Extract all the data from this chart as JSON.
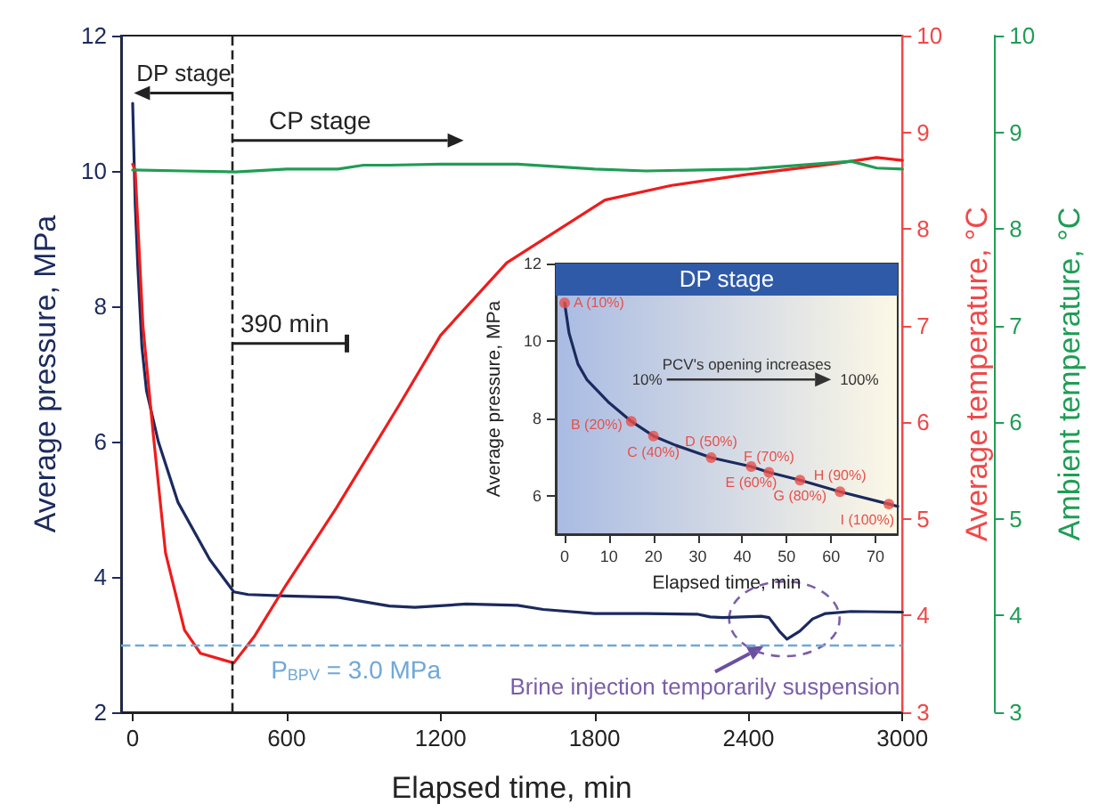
{
  "chart_data": [
    {
      "type": "line",
      "xlabel": "Elapsed time, min",
      "ylabel": "Average pressure, MPa",
      "y2label": "Average temperature, °C",
      "y3label": "Ambient temperature, °C",
      "xlim": [
        -45,
        3000
      ],
      "xticks": [
        0,
        600,
        1200,
        1800,
        2400,
        3000
      ],
      "ylim": [
        2,
        12
      ],
      "yticks": [
        2,
        4,
        6,
        8,
        10,
        12
      ],
      "y2lim": [
        3,
        10
      ],
      "y2ticks": [
        3,
        4,
        5,
        6,
        7,
        8,
        9,
        10
      ],
      "y3lim": [
        3,
        10
      ],
      "y3ticks": [
        3,
        4,
        5,
        6,
        7,
        8,
        9,
        10
      ],
      "grid": false,
      "marker": "none",
      "line_style": "solid",
      "series": [
        {
          "color": "#1b2a5e",
          "axis": "y",
          "x": [
            0,
            10,
            20,
            36,
            54,
            100,
            177,
            300,
            394,
            450,
            600,
            800,
            1000,
            1100,
            1300,
            1500,
            1600,
            1800,
            2000,
            2200,
            2250,
            2300,
            2450,
            2480,
            2520,
            2550,
            2600,
            2650,
            2700,
            2800,
            3000
          ],
          "values": [
            11.0,
            9.5,
            8.6,
            7.4,
            6.75,
            6.0,
            5.1,
            4.26,
            3.78,
            3.74,
            3.72,
            3.7,
            3.57,
            3.55,
            3.6,
            3.58,
            3.52,
            3.46,
            3.46,
            3.45,
            3.41,
            3.4,
            3.42,
            3.4,
            3.2,
            3.08,
            3.2,
            3.38,
            3.46,
            3.49,
            3.48
          ]
        },
        {
          "color": "#ee1c1c",
          "axis": "y2",
          "x": [
            0,
            10,
            40,
            79,
            128,
            202,
            264,
            394,
            473,
            596,
            793,
            1039,
            1200,
            1458,
            1841,
            2100,
            2383,
            2723,
            2900,
            3000
          ],
          "values": [
            8.67,
            8.6,
            7.0,
            5.91,
            4.65,
            3.85,
            3.61,
            3.51,
            3.78,
            4.31,
            5.11,
            6.18,
            6.9,
            7.65,
            8.3,
            8.45,
            8.56,
            8.67,
            8.74,
            8.71
          ]
        },
        {
          "color": "#1f9d55",
          "axis": "y3",
          "x": [
            0,
            200,
            400,
            600,
            800,
            900,
            1000,
            1200,
            1500,
            1800,
            2000,
            2400,
            2800,
            2900,
            3000
          ],
          "values": [
            8.61,
            8.6,
            8.59,
            8.62,
            8.62,
            8.66,
            8.66,
            8.67,
            8.67,
            8.62,
            8.6,
            8.62,
            8.7,
            8.63,
            8.62
          ]
        }
      ],
      "ref_lines": [
        {
          "axis": "y",
          "value": 3.0,
          "label": "P$_{BPV}$ = 3.0 MPa",
          "color": "#6fa8d8",
          "line_style": "dashed"
        },
        {
          "axis": "x",
          "value": 390,
          "color": "#222222",
          "line_style": "dashed"
        }
      ],
      "annotations": [
        "DP stage",
        "CP stage",
        "390 min",
        "Brine injection temporarily suspension"
      ]
    },
    {
      "type": "line",
      "title": "DP stage",
      "xlabel": "Elapsed time, min",
      "ylabel": "Average pressure, MPa",
      "xlim": [
        -2,
        75
      ],
      "xticks": [
        0,
        10,
        20,
        30,
        40,
        50,
        60,
        70
      ],
      "ylim": [
        5,
        12
      ],
      "yticks": [
        6,
        8,
        10,
        12
      ],
      "grid": false,
      "marker": "none",
      "line_style": "solid",
      "x": [
        0,
        1,
        3,
        5,
        10,
        15,
        20,
        25,
        33,
        42,
        46,
        53,
        62,
        73,
        75
      ],
      "series": [
        {
          "color": "#1b2a5e",
          "values": [
            10.98,
            10.2,
            9.4,
            9.0,
            8.4,
            7.92,
            7.54,
            7.3,
            6.98,
            6.75,
            6.6,
            6.4,
            6.1,
            5.78,
            5.72
          ]
        },
        {
          "type": "scatter",
          "marker": "circle",
          "color": "#e8504a",
          "x": [
            0,
            15,
            20,
            33,
            42,
            46,
            53,
            62,
            73
          ],
          "values": [
            10.98,
            7.92,
            7.54,
            6.98,
            6.75,
            6.6,
            6.4,
            6.1,
            5.78
          ]
        }
      ],
      "annotations": [
        {
          "text": "A (10%)",
          "x": 0,
          "y": 10.98
        },
        {
          "text": "B (20%)",
          "x": 15,
          "y": 7.92
        },
        {
          "text": "C (40%)",
          "x": 20,
          "y": 7.54
        },
        {
          "text": "D (50%)",
          "x": 33,
          "y": 6.98
        },
        {
          "text": "E (60%)",
          "x": 42,
          "y": 6.75
        },
        {
          "text": "F (70%)",
          "x": 46,
          "y": 6.6
        },
        {
          "text": "G (80%)",
          "x": 53,
          "y": 6.4
        },
        {
          "text": "H (90%)",
          "x": 62,
          "y": 6.1
        },
        {
          "text": "I (100%)",
          "x": 73,
          "y": 5.78
        },
        "PCV's opening increases",
        "10%",
        "100%"
      ]
    }
  ]
}
